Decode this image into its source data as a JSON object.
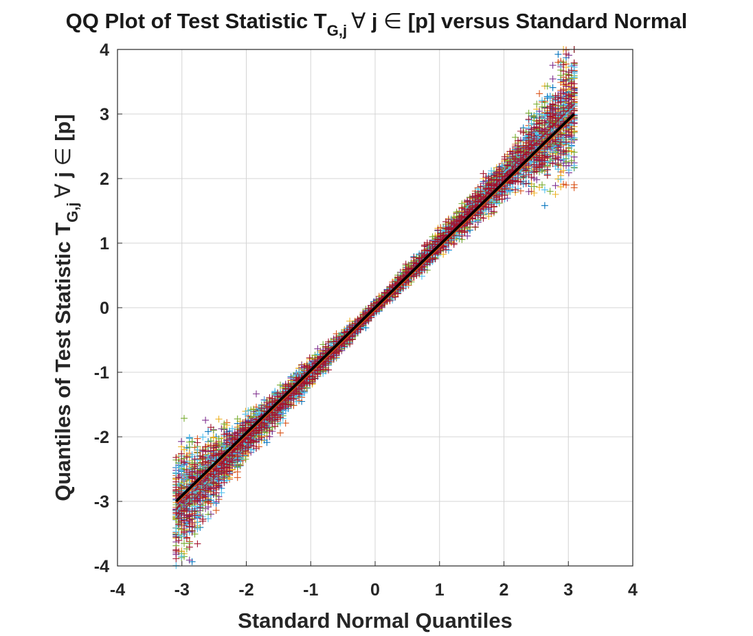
{
  "chart_data": {
    "type": "scatter",
    "title": {
      "prefix": "QQ Plot of Test Statistic T",
      "subscript": "G,j",
      "forall": "∀",
      "mid": " j ",
      "elem": "∈",
      "suffix": " [p] versus Standard Normal"
    },
    "xlabel": "Standard Normal Quantiles",
    "ylabel": {
      "prefix": "Quantiles of Test Statistic T",
      "subscript": "G,j",
      "forall": "∀",
      "mid": " j ",
      "elem": "∈",
      "suffix": " [p]"
    },
    "xlim": [
      -4,
      4
    ],
    "ylim": [
      -4,
      4
    ],
    "xticks": [
      "-4",
      "-3",
      "-2",
      "-1",
      "0",
      "1",
      "2",
      "3",
      "4"
    ],
    "yticks": [
      "4",
      "3",
      "2",
      "1",
      "0",
      "-1",
      "-2",
      "-3",
      "-4"
    ],
    "grid": true,
    "reference_line": {
      "x": [
        -3.09,
        3.09
      ],
      "y": [
        -3.0,
        3.0
      ],
      "color": "#000000"
    },
    "median_line_color": "#d95319",
    "marker": "+",
    "series_count": 7,
    "quantile_range": [
      -3.09,
      3.09
    ],
    "colors": [
      "#0072bd",
      "#d95319",
      "#edb120",
      "#7e2f8e",
      "#77ac30",
      "#4dbeee",
      "#a2142f"
    ]
  }
}
